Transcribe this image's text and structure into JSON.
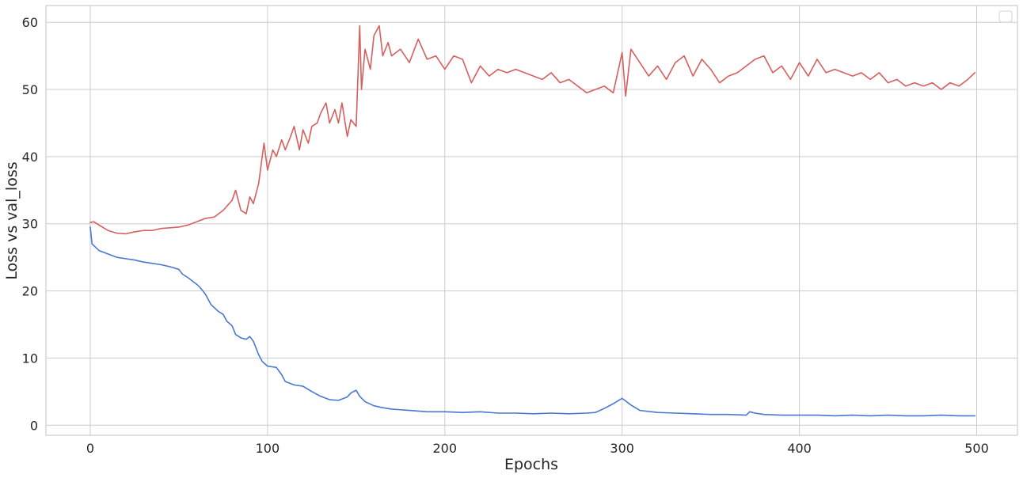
{
  "chart_data": {
    "type": "line",
    "title": "",
    "xlabel": "Epochs",
    "ylabel": "Loss vs val_loss",
    "xlim": [
      -25,
      523
    ],
    "ylim": [
      -1.5,
      62.5
    ],
    "x_ticks": [
      0,
      100,
      200,
      300,
      400,
      500
    ],
    "y_ticks": [
      0,
      10,
      20,
      30,
      40,
      50,
      60
    ],
    "grid": true,
    "legend": {
      "location": "top-right",
      "entries": []
    },
    "series": [
      {
        "color": "#4878d0",
        "x": [
          0,
          1,
          3,
          5,
          10,
          15,
          20,
          25,
          30,
          35,
          40,
          45,
          50,
          52,
          55,
          60,
          62,
          65,
          68,
          70,
          72,
          75,
          77,
          80,
          82,
          85,
          88,
          90,
          92,
          95,
          97,
          100,
          105,
          108,
          110,
          115,
          120,
          125,
          130,
          135,
          140,
          145,
          147,
          150,
          152,
          155,
          160,
          165,
          170,
          180,
          190,
          200,
          210,
          220,
          230,
          240,
          250,
          260,
          270,
          280,
          285,
          290,
          295,
          300,
          302,
          305,
          310,
          320,
          330,
          340,
          350,
          360,
          370,
          372,
          375,
          380,
          390,
          400,
          410,
          420,
          430,
          440,
          450,
          460,
          470,
          480,
          490,
          499
        ],
        "y": [
          29.5,
          27.0,
          26.5,
          26.0,
          25.5,
          25.0,
          24.8,
          24.6,
          24.3,
          24.1,
          23.9,
          23.6,
          23.2,
          22.5,
          22.0,
          21.0,
          20.5,
          19.5,
          18.0,
          17.5,
          17.0,
          16.5,
          15.5,
          14.8,
          13.5,
          13.0,
          12.8,
          13.2,
          12.5,
          10.5,
          9.5,
          8.8,
          8.6,
          7.5,
          6.5,
          6.0,
          5.8,
          5.0,
          4.3,
          3.8,
          3.7,
          4.2,
          4.8,
          5.2,
          4.3,
          3.5,
          2.9,
          2.6,
          2.4,
          2.2,
          2.0,
          2.0,
          1.9,
          2.0,
          1.8,
          1.8,
          1.7,
          1.8,
          1.7,
          1.8,
          1.9,
          2.5,
          3.2,
          4.0,
          3.6,
          3.0,
          2.2,
          1.9,
          1.8,
          1.7,
          1.6,
          1.6,
          1.5,
          2.0,
          1.8,
          1.6,
          1.5,
          1.5,
          1.5,
          1.4,
          1.5,
          1.4,
          1.5,
          1.4,
          1.4,
          1.5,
          1.4,
          1.4
        ]
      },
      {
        "color": "#d65f5f",
        "x": [
          0,
          2,
          5,
          10,
          15,
          20,
          25,
          30,
          35,
          40,
          45,
          50,
          55,
          60,
          65,
          70,
          75,
          80,
          82,
          85,
          88,
          90,
          92,
          95,
          98,
          100,
          103,
          105,
          108,
          110,
          113,
          115,
          118,
          120,
          123,
          125,
          128,
          130,
          133,
          135,
          138,
          140,
          142,
          145,
          147,
          150,
          152,
          153,
          155,
          158,
          160,
          163,
          165,
          168,
          170,
          175,
          180,
          185,
          190,
          195,
          200,
          205,
          210,
          215,
          220,
          225,
          230,
          235,
          240,
          245,
          250,
          255,
          260,
          265,
          270,
          275,
          280,
          285,
          290,
          295,
          300,
          302,
          305,
          310,
          315,
          320,
          325,
          330,
          335,
          340,
          345,
          350,
          355,
          360,
          365,
          370,
          375,
          380,
          385,
          390,
          395,
          400,
          405,
          410,
          415,
          420,
          425,
          430,
          435,
          440,
          445,
          450,
          455,
          460,
          465,
          470,
          475,
          480,
          485,
          490,
          495,
          499
        ],
        "y": [
          30.2,
          30.3,
          29.8,
          29.0,
          28.6,
          28.5,
          28.8,
          29.0,
          29.0,
          29.3,
          29.4,
          29.5,
          29.8,
          30.3,
          30.8,
          31.0,
          32.0,
          33.5,
          35.0,
          32.0,
          31.5,
          34.0,
          33.0,
          36.0,
          42.0,
          38.0,
          41.0,
          40.0,
          42.5,
          41.0,
          43.0,
          44.5,
          41.0,
          44.0,
          42.0,
          44.5,
          45.0,
          46.5,
          48.0,
          45.0,
          47.0,
          45.0,
          48.0,
          43.0,
          45.5,
          44.5,
          59.5,
          50.0,
          56.0,
          53.0,
          58.0,
          59.5,
          55.0,
          57.0,
          55.0,
          56.0,
          54.0,
          57.5,
          54.5,
          55.0,
          53.0,
          55.0,
          54.5,
          51.0,
          53.5,
          52.0,
          53.0,
          52.5,
          53.0,
          52.5,
          52.0,
          51.5,
          52.5,
          51.0,
          51.5,
          50.5,
          49.5,
          50.0,
          50.5,
          49.5,
          55.5,
          49.0,
          56.0,
          54.0,
          52.0,
          53.5,
          51.5,
          54.0,
          55.0,
          52.0,
          54.5,
          53.0,
          51.0,
          52.0,
          52.5,
          53.5,
          54.5,
          55.0,
          52.5,
          53.5,
          51.5,
          54.0,
          52.0,
          54.5,
          52.5,
          53.0,
          52.5,
          52.0,
          52.5,
          51.5,
          52.5,
          51.0,
          51.5,
          50.5,
          51.0,
          50.5,
          51.0,
          50.0,
          51.0,
          50.5,
          51.5,
          52.5
        ]
      }
    ]
  }
}
